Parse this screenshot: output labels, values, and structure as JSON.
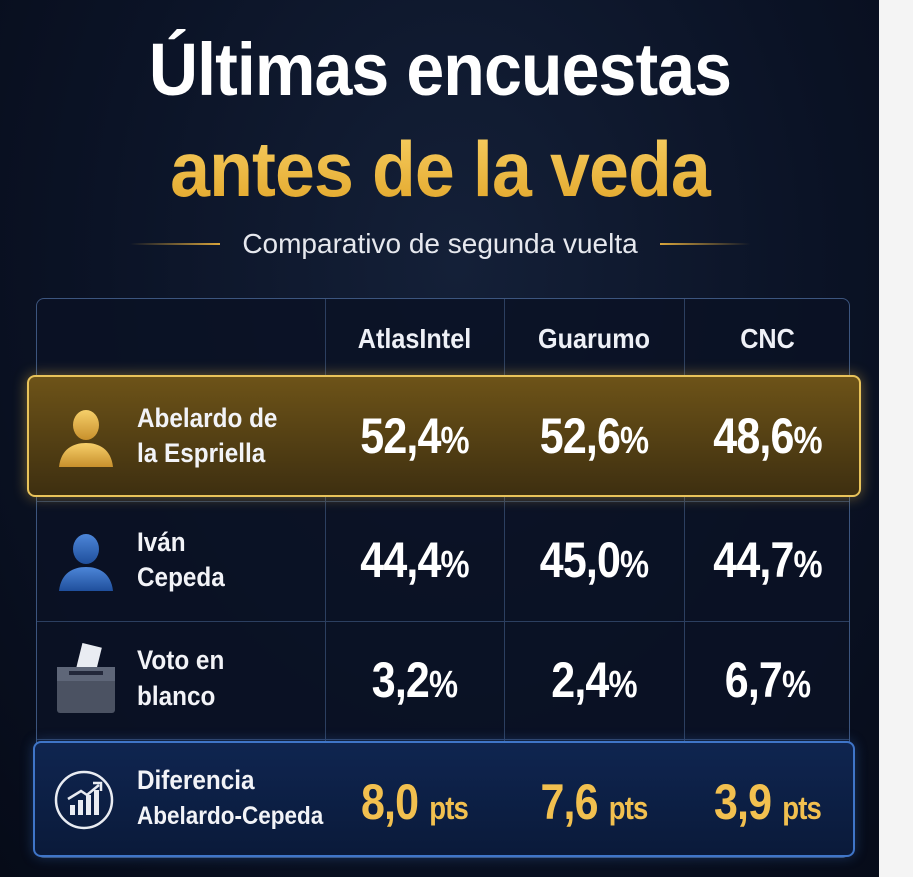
{
  "title_line1": "Últimas encuestas",
  "title_line2": "antes de la veda",
  "subtitle": "Comparativo de segunda vuelta",
  "columns": [
    "AtlasIntel",
    "Guarumo",
    "CNC"
  ],
  "rows": [
    {
      "label_line1": "Abelardo de",
      "label_line2": "la Espriella",
      "icon": "person-icon",
      "values": [
        "52,4",
        "52,6",
        "48,6"
      ],
      "unit": "%"
    },
    {
      "label_line1": "Iván",
      "label_line2": "Cepeda",
      "icon": "person-icon",
      "values": [
        "44,4",
        "45,0",
        "44,7"
      ],
      "unit": "%"
    },
    {
      "label_line1": "Voto en",
      "label_line2": "blanco",
      "icon": "ballot-box-icon",
      "values": [
        "3,2",
        "2,4",
        "6,7"
      ],
      "unit": "%"
    },
    {
      "label_line1": "Diferencia",
      "label_line2": "Abelardo-Cepeda",
      "icon": "chart-up-icon",
      "values": [
        "8,0",
        "7,6",
        "3,9"
      ],
      "unit": "pts"
    }
  ],
  "colors": {
    "gold": "#f2c04f",
    "highlight_border": "#e9c35a",
    "blue_border": "#3f75c8",
    "background": "#0b1326"
  }
}
